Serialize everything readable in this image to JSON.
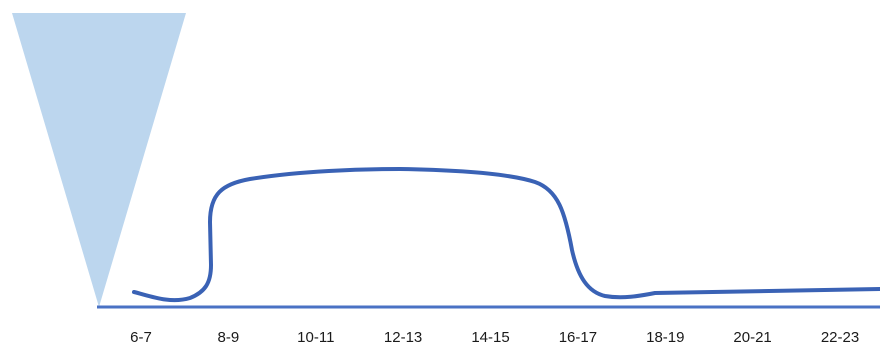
{
  "chart_data": {
    "type": "line",
    "title": "",
    "xlabel": "",
    "ylabel": "",
    "categories": [
      "6-7",
      "8-9",
      "10-11",
      "12-13",
      "14-15",
      "16-17",
      "18-19",
      "20-21",
      "22-23"
    ],
    "grid": false,
    "legend": "none",
    "series": [
      {
        "values": [
          0.05,
          0.85,
          0.98,
          1.0,
          0.95,
          0.06,
          0.09,
          0.13,
          0.15
        ]
      }
    ]
  },
  "colors": {
    "line": "#3a62b5",
    "axis": "#4a72c4",
    "triangle": "#bcd6ee",
    "tick_text": "#1a1a1a"
  }
}
